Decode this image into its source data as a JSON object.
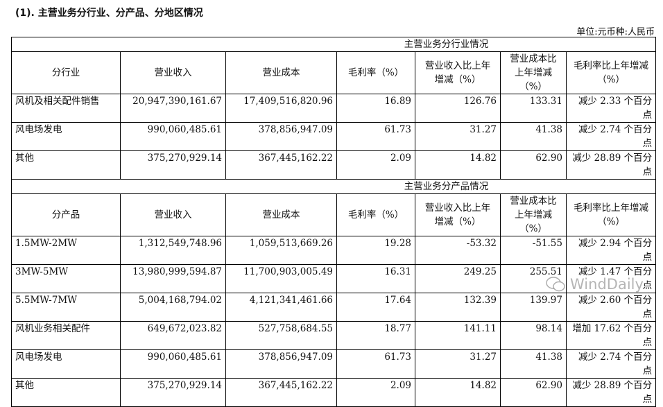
{
  "title": "(1). 主营业务分行业、分产品、分地区情况",
  "unit": "单位:元币种:人民币",
  "columns_common": [
    "营业收入",
    "营业成本",
    "毛利率（%）",
    "营业收入比上年增减（%）",
    "营业成本比上年增减（%）",
    "毛利率比上年增减（%）"
  ],
  "industry": {
    "section_title": "主营业务分行业情况",
    "first_col": "分行业",
    "rows": [
      {
        "name": "风机及相关配件销售",
        "revenue": "20,947,390,161.67",
        "cost": "17,409,516,820.96",
        "margin": "16.89",
        "rev_chg": "126.76",
        "cost_chg": "133.31",
        "margin_chg": "减少 2.33 个百分点"
      },
      {
        "name": "风电场发电",
        "revenue": "990,060,485.61",
        "cost": "378,856,947.09",
        "margin": "61.73",
        "rev_chg": "31.27",
        "cost_chg": "41.38",
        "margin_chg": "减少 2.74 个百分点"
      },
      {
        "name": "其他",
        "revenue": "375,270,929.14",
        "cost": "367,445,162.22",
        "margin": "2.09",
        "rev_chg": "14.82",
        "cost_chg": "62.90",
        "margin_chg": "减少 28.89 个百分点"
      }
    ]
  },
  "product": {
    "section_title": "主营业务分产品情况",
    "first_col": "分产品",
    "rows": [
      {
        "name": "1.5MW-2MW",
        "revenue": "1,312,549,748.96",
        "cost": "1,059,513,669.26",
        "margin": "19.28",
        "rev_chg": "-53.32",
        "cost_chg": "-51.55",
        "margin_chg": "减少 2.94 个百分点"
      },
      {
        "name": "3MW-5MW",
        "revenue": "13,980,999,594.87",
        "cost": "11,700,903,005.49",
        "margin": "16.31",
        "rev_chg": "249.25",
        "cost_chg": "255.51",
        "margin_chg": "减少 1.47 个百分点"
      },
      {
        "name": "5.5MW-7MW",
        "revenue": "5,004,168,794.02",
        "cost": "4,121,341,461.66",
        "margin": "17.64",
        "rev_chg": "132.39",
        "cost_chg": "139.97",
        "margin_chg": "减少 2.60 个百分点"
      },
      {
        "name": "风机业务相关配件",
        "revenue": "649,672,023.82",
        "cost": "527,758,684.55",
        "margin": "18.77",
        "rev_chg": "141.11",
        "cost_chg": "98.14",
        "margin_chg": "增加 17.62 个百分点"
      },
      {
        "name": "风电场发电",
        "revenue": "990,060,485.61",
        "cost": "378,856,947.09",
        "margin": "61.73",
        "rev_chg": "31.27",
        "cost_chg": "41.38",
        "margin_chg": "减少 2.74 个百分点"
      },
      {
        "name": "其他",
        "revenue": "375,270,929.14",
        "cost": "367,445,162.22",
        "margin": "2.09",
        "rev_chg": "14.82",
        "cost_chg": "62.90",
        "margin_chg": "减少 28.89 个百分点"
      }
    ]
  },
  "watermark": "WindDaily"
}
